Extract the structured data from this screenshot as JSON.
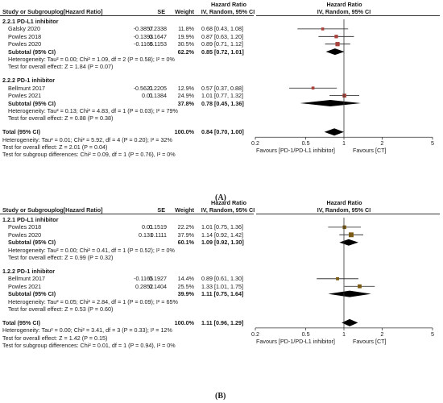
{
  "chart_data": [
    {
      "type": "forest",
      "panel": "(A)",
      "columns": {
        "study": "Study or Subgroup",
        "loghr": "log[Hazard Ratio]",
        "se": "SE",
        "weight": "Weight",
        "hr_top": "Hazard Ratio",
        "hr_sub": "IV, Random, 95% CI",
        "plot_top": "Hazard Ratio",
        "plot_sub": "IV, Random, 95% CI"
      },
      "xaxis": {
        "scale": "log",
        "ticks": [
          "0.2",
          "0.5",
          "1",
          "2",
          "5"
        ],
        "tick_values": [
          0.2,
          0.5,
          1,
          2,
          5
        ],
        "range": [
          0.2,
          5
        ],
        "left_label": "Favours [PD-1/PD-L1 inhibitor]",
        "right_label": "Favours [CT]"
      },
      "groups": [
        {
          "name": "2.2.1 PD-L1 inhibitor",
          "studies": [
            {
              "name": "Galsky 2020",
              "loghr": "-0.3857",
              "se": "0.2338",
              "weight": "11.8%",
              "ci_text": "0.68 [0.43, 1.08]",
              "hr": 0.68,
              "lo": 0.43,
              "hi": 1.08
            },
            {
              "name": "Powles 2018",
              "loghr": "-0.1393",
              "se": "0.1647",
              "weight": "19.9%",
              "ci_text": "0.87 [0.63, 1.20]",
              "hr": 0.87,
              "lo": 0.63,
              "hi": 1.2
            },
            {
              "name": "Powles 2020",
              "loghr": "-0.1165",
              "se": "0.1153",
              "weight": "30.5%",
              "ci_text": "0.89 [0.71, 1.12]",
              "hr": 0.89,
              "lo": 0.71,
              "hi": 1.12
            }
          ],
          "subtotal": {
            "label": "Subtotal (95% CI)",
            "weight": "62.2%",
            "ci_text": "0.85 [0.72, 1.01]",
            "hr": 0.85,
            "lo": 0.72,
            "hi": 1.01
          },
          "heterogeneity": "Heterogeneity: Tau² = 0.00; Chi² = 1.09, df = 2 (P = 0.58); I² = 0%",
          "overall_effect": "Test for overall effect: Z = 1.84 (P = 0.07)"
        },
        {
          "name": "2.2.2 PD-1 inhibitor",
          "studies": [
            {
              "name": "Bellmunt 2017",
              "loghr": "-0.5621",
              "se": "0.2205",
              "weight": "12.9%",
              "ci_text": "0.57 [0.37, 0.88]",
              "hr": 0.57,
              "lo": 0.37,
              "hi": 0.88
            },
            {
              "name": "Powles 2021",
              "loghr": "0.01",
              "se": "0.1384",
              "weight": "24.9%",
              "ci_text": "1.01 [0.77, 1.32]",
              "hr": 1.01,
              "lo": 0.77,
              "hi": 1.32
            }
          ],
          "subtotal": {
            "label": "Subtotal (95% CI)",
            "weight": "37.8%",
            "ci_text": "0.78 [0.45, 1.36]",
            "hr": 0.78,
            "lo": 0.45,
            "hi": 1.36
          },
          "heterogeneity": "Heterogeneity: Tau² = 0.13; Chi² = 4.83, df = 1 (P = 0.03); I² = 79%",
          "overall_effect": "Test for overall effect: Z = 0.88 (P = 0.38)"
        }
      ],
      "total": {
        "label": "Total (95% CI)",
        "weight": "100.0%",
        "ci_text": "0.84 [0.70, 1.00]",
        "hr": 0.84,
        "lo": 0.7,
        "hi": 1.0,
        "heterogeneity": "Heterogeneity: Tau² = 0.01; Chi² = 5.92, df = 4 (P = 0.20); I² = 32%",
        "overall_effect": "Test for overall effect: Z = 2.01 (P = 0.04)",
        "subgroup_diff": "Test for subgroup differences: Chi² = 0.09, df = 1 (P = 0.76), I² = 0%"
      }
    },
    {
      "type": "forest",
      "panel": "(B)",
      "columns": {
        "study": "Study or Subgroup",
        "loghr": "log[Hazard Ratio]",
        "se": "SE",
        "weight": "Weight",
        "hr_top": "Hazard Ratio",
        "hr_sub": "IV, Random, 95% CI",
        "plot_top": "Hazard Ratio",
        "plot_sub": "IV, Random, 95% CI"
      },
      "xaxis": {
        "scale": "log",
        "ticks": [
          "0.2",
          "0.5",
          "1",
          "2",
          "5"
        ],
        "tick_values": [
          0.2,
          0.5,
          1,
          2,
          5
        ],
        "range": [
          0.2,
          5
        ],
        "left_label": "Favours [PD-1/PD-L1 inhibitor]",
        "right_label": "Favours [CT]"
      },
      "groups": [
        {
          "name": "1.2.1 PD-L1 inhibitor",
          "studies": [
            {
              "name": "Powles 2018",
              "loghr": "0.01",
              "se": "0.1519",
              "weight": "22.2%",
              "ci_text": "1.01 [0.75, 1.36]",
              "hr": 1.01,
              "lo": 0.75,
              "hi": 1.36
            },
            {
              "name": "Powles 2020",
              "loghr": "0.131",
              "se": "0.1111",
              "weight": "37.9%",
              "ci_text": "1.14 [0.92, 1.42]",
              "hr": 1.14,
              "lo": 0.92,
              "hi": 1.42
            }
          ],
          "subtotal": {
            "label": "Subtotal (95% CI)",
            "weight": "60.1%",
            "ci_text": "1.09 [0.92, 1.30]",
            "hr": 1.09,
            "lo": 0.92,
            "hi": 1.3
          },
          "heterogeneity": "Heterogeneity: Tau² = 0.00; Chi² = 0.41, df = 1 (P = 0.52); I² = 0%",
          "overall_effect": "Test for overall effect: Z = 0.99 (P = 0.32)"
        },
        {
          "name": "1.2.2 PD-1 inhibitor",
          "studies": [
            {
              "name": "Bellmunt 2017",
              "loghr": "-0.1165",
              "se": "0.1927",
              "weight": "14.4%",
              "ci_text": "0.89 [0.61, 1.30]",
              "hr": 0.89,
              "lo": 0.61,
              "hi": 1.3
            },
            {
              "name": "Powles 2021",
              "loghr": "0.2852",
              "se": "0.1404",
              "weight": "25.5%",
              "ci_text": "1.33 [1.01, 1.75]",
              "hr": 1.33,
              "lo": 1.01,
              "hi": 1.75
            }
          ],
          "subtotal": {
            "label": "Subtotal (95% CI)",
            "weight": "39.9%",
            "ci_text": "1.11 [0.75, 1.64]",
            "hr": 1.11,
            "lo": 0.75,
            "hi": 1.64
          },
          "heterogeneity": "Heterogeneity: Tau² = 0.05; Chi² = 2.84, df = 1 (P = 0.09); I² = 65%",
          "overall_effect": "Test for overall effect: Z = 0.53 (P = 0.60)"
        }
      ],
      "total": {
        "label": "Total (95% CI)",
        "weight": "100.0%",
        "ci_text": "1.11 [0.96, 1.29]",
        "hr": 1.11,
        "lo": 0.96,
        "hi": 1.29,
        "heterogeneity": "Heterogeneity: Tau² = 0.00; Chi² = 3.41, df = 3 (P = 0.33); I² = 12%",
        "overall_effect": "Test for overall effect: Z = 1.42 (P = 0.15)",
        "subgroup_diff": "Test for subgroup differences: Chi² = 0.01, df = 1 (P = 0.94), I² = 0%"
      }
    }
  ],
  "colors": {
    "study_square": "#a8423a",
    "study_square_b": "#7a5a12",
    "diamond": "#000000",
    "line": "#1a1a1a",
    "axis": "#333333"
  }
}
